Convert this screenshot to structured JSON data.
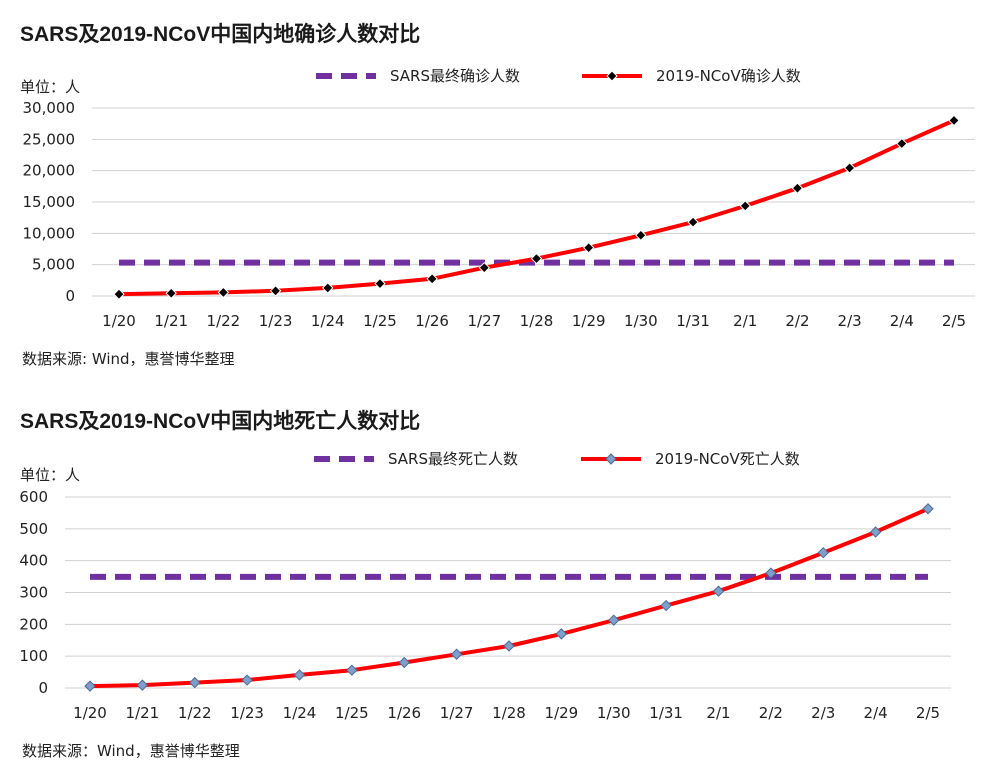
{
  "charts": [
    {
      "heading": "SARS及2019-NCoV中国内地确诊人数对比",
      "source": "数据来源: Wind，惠誉博华整理",
      "chart_data": {
        "type": "line",
        "unit_label": "单位：人",
        "categories": [
          "1/20",
          "1/21",
          "1/22",
          "1/23",
          "1/24",
          "1/25",
          "1/26",
          "1/27",
          "1/28",
          "1/29",
          "1/30",
          "1/31",
          "2/1",
          "2/2",
          "2/3",
          "2/4",
          "2/5"
        ],
        "ylim": [
          0,
          30000
        ],
        "yticks": [
          0,
          5000,
          10000,
          15000,
          20000,
          25000,
          30000
        ],
        "ytick_labels": [
          "0",
          "5,000",
          "10,000",
          "15,000",
          "20,000",
          "25,000",
          "30,000"
        ],
        "grid": true,
        "legend_position": "top-center",
        "series": [
          {
            "name": "SARS最终确诊人数",
            "values": [
              5327,
              5327,
              5327,
              5327,
              5327,
              5327,
              5327,
              5327,
              5327,
              5327,
              5327,
              5327,
              5327,
              5327,
              5327,
              5327,
              5327
            ],
            "color": "#7030a0",
            "style": "dashed"
          },
          {
            "name": "2019-NCoV确诊人数",
            "values": [
              291,
              440,
              571,
              830,
              1287,
              1975,
              2744,
              4515,
              5974,
              7711,
              9692,
              11791,
              14380,
              17205,
              20438,
              24324,
              28018
            ],
            "color": "#ff0000",
            "style": "solid-marker",
            "marker_color": "#000000"
          }
        ]
      }
    },
    {
      "heading": "SARS及2019-NCoV中国内地死亡人数对比",
      "source": "数据来源：Wind，惠誉博华整理",
      "chart_data": {
        "type": "line",
        "unit_label": "单位：人",
        "categories": [
          "1/20",
          "1/21",
          "1/22",
          "1/23",
          "1/24",
          "1/25",
          "1/26",
          "1/27",
          "1/28",
          "1/29",
          "1/30",
          "1/31",
          "2/1",
          "2/2",
          "2/3",
          "2/4",
          "2/5"
        ],
        "ylim": [
          0,
          600
        ],
        "yticks": [
          0,
          100,
          200,
          300,
          400,
          500,
          600
        ],
        "ytick_labels": [
          "0",
          "100",
          "200",
          "300",
          "400",
          "500",
          "600"
        ],
        "grid": true,
        "legend_position": "top-center",
        "series": [
          {
            "name": "SARS最终死亡人数",
            "values": [
              349,
              349,
              349,
              349,
              349,
              349,
              349,
              349,
              349,
              349,
              349,
              349,
              349,
              349,
              349,
              349,
              349
            ],
            "color": "#7030a0",
            "style": "dashed"
          },
          {
            "name": "2019-NCoV死亡人数",
            "values": [
              6,
              9,
              17,
              25,
              41,
              56,
              80,
              106,
              132,
              170,
              213,
              259,
              304,
              361,
              425,
              490,
              563
            ],
            "color": "#ff0000",
            "style": "solid-marker",
            "marker_color": "#7f9fc8"
          }
        ]
      }
    }
  ]
}
